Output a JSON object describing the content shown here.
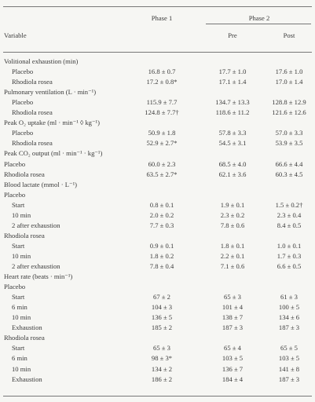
{
  "header": {
    "phase1": "Phase 1",
    "phase2": "Phase 2",
    "variable": "Variable",
    "pre": "Pre",
    "post": "Post"
  },
  "table": {
    "rows": [
      [
        "Volitional exhaustion (min)"
      ],
      [
        "Placebo",
        "16.8 ± 0.7",
        "17.7 ± 1.0",
        "17.6 ± 1.0"
      ],
      [
        "Rhodiola rosea",
        "17.2 ± 0.8*",
        "17.1 ± 1.4",
        "17.0 ± 1.4"
      ],
      [
        "Pulmonary ventilation (L · min⁻¹)"
      ],
      [
        "Placebo",
        "115.9 ± 7.7",
        "134.7 ± 13.3",
        "128.8 ± 12.9"
      ],
      [
        "Rhodiola rosea",
        "124.8 ± 7.7†",
        "118.6 ± 11.2",
        "121.6 ± 12.6"
      ],
      [
        "Peak O₂ uptake (ml · min⁻¹ ◊ kg⁻¹)"
      ],
      [
        "Placebo",
        "50.9 ± 1.8",
        "57.8 ± 3.3",
        "57.0 ± 3.3"
      ],
      [
        "Rhodiola rosea",
        "52.9 ± 2.7*",
        "54.5 ± 3.1",
        "53.9 ± 3.5"
      ],
      [
        "Peak CO₂ output (ml · min⁻¹ · kg⁻¹)"
      ],
      [
        "Placebo",
        "60.0 ± 2.3",
        "68.5 ± 4.0",
        "66.6 ± 4.4"
      ],
      [
        "Rhodiola rosea",
        "63.5 ± 2.7*",
        "62.1 ± 3.6",
        "60.3 ± 4.5"
      ],
      [
        "Blood lactate (mmol · L⁻¹)"
      ],
      [
        "Placebo"
      ],
      [
        "Start",
        "0.8 ± 0.1",
        "1.9 ± 0.1",
        "1.5 ± 0.2†"
      ],
      [
        "10 min",
        "2.0 ± 0.2",
        "2.3 ± 0.2",
        "2.3 ± 0.4"
      ],
      [
        "2 after exhaustion",
        "7.7 ± 0.3",
        "7.8 ± 0.6",
        "8.4 ± 0.5"
      ],
      [
        "Rhodiola rosea"
      ],
      [
        "Start",
        "0.9 ± 0.1",
        "1.8 ± 0.1",
        "1.0 ± 0.1"
      ],
      [
        "10 min",
        "1.8 ± 0.2",
        "2.2 ± 0.1",
        "1.7 ± 0.3"
      ],
      [
        "2 after exhaustion",
        "7.8 ± 0.4",
        "7.1 ± 0.6",
        "6.6 ± 0.5"
      ],
      [
        "Heart rate (beats · min⁻¹)"
      ],
      [
        "Placebo"
      ],
      [
        "Start",
        "67 ± 2",
        "65 ± 3",
        "61 ± 3"
      ],
      [
        "6 min",
        "104 ± 3",
        "101 ± 4",
        "100 ± 5"
      ],
      [
        "10 min",
        "136 ± 5",
        "138 ± 7",
        "134 ± 6"
      ],
      [
        "Exhaustion",
        "185 ± 2",
        "187 ± 3",
        "187 ± 3"
      ],
      [
        "Rhodiola rosea"
      ],
      [
        "Start",
        "65 ± 3",
        "65 ± 4",
        "65 ± 5"
      ],
      [
        "6 min",
        "98 ± 3*",
        "103 ± 5",
        "103 ± 5"
      ],
      [
        "10 min",
        "134 ± 2",
        "136 ± 7",
        "141 ± 8"
      ],
      [
        "Exhaustion",
        "186 ± 2",
        "184 ± 4",
        "187 ± 3"
      ]
    ]
  }
}
